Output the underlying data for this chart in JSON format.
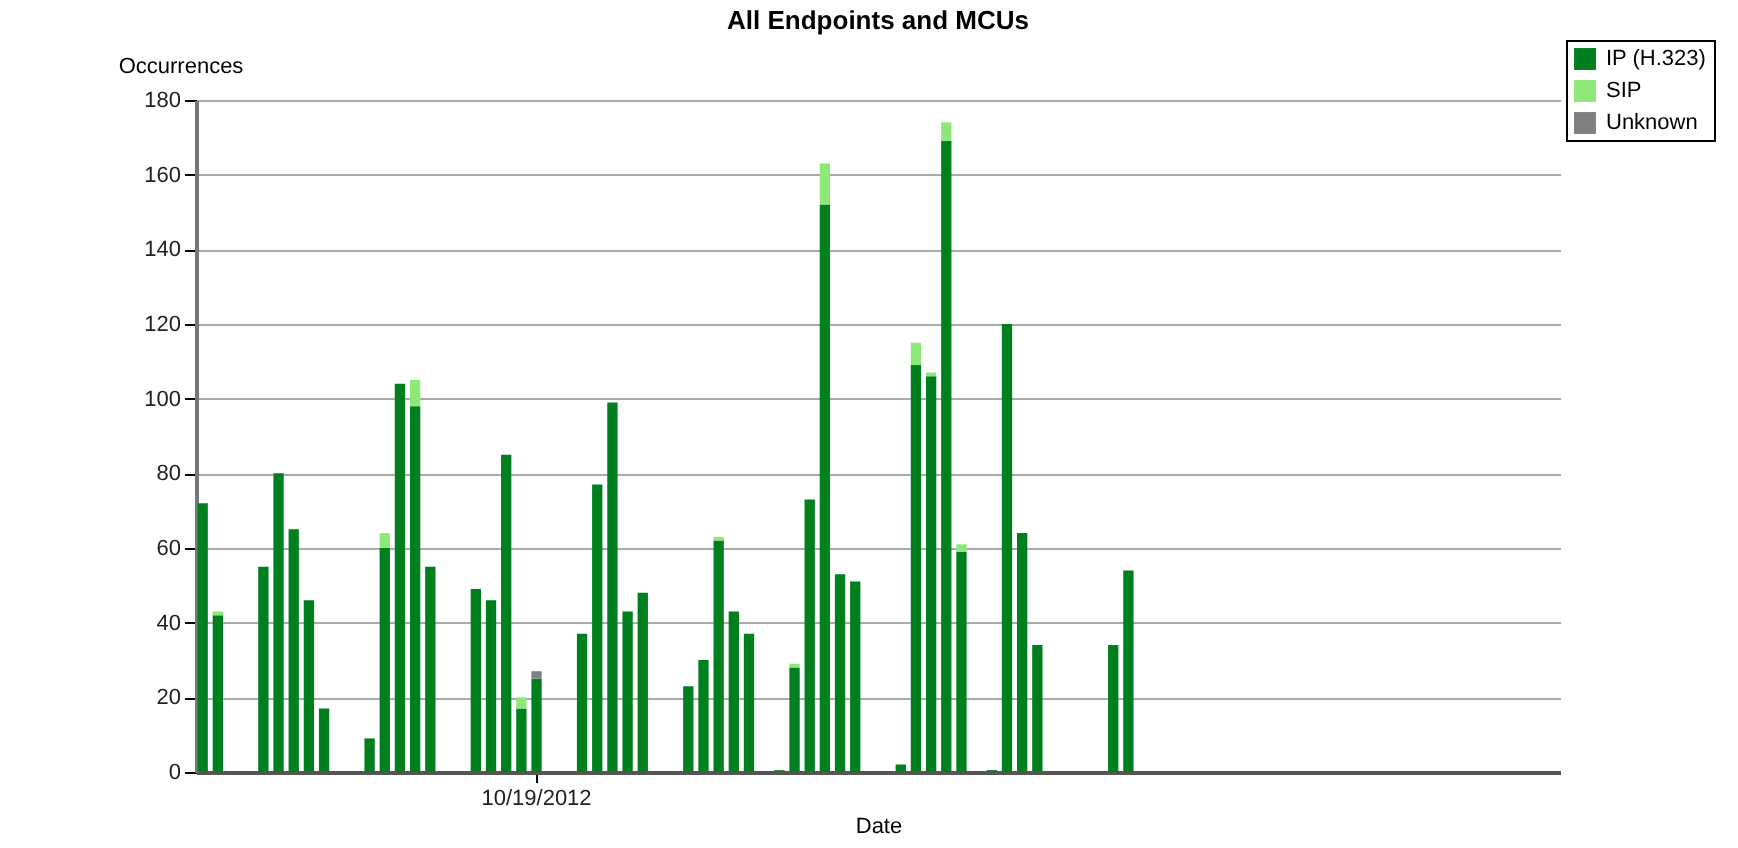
{
  "chart_data": {
    "type": "bar",
    "title": "All Endpoints and MCUs",
    "xlabel": "Date",
    "ylabel": "Occurrences",
    "categories": [
      null,
      null,
      null,
      null,
      null,
      null,
      null,
      null,
      null,
      null,
      null,
      null,
      null,
      null,
      null,
      null,
      null,
      null,
      null,
      null,
      null,
      null,
      "10/19/2012",
      null,
      null,
      null,
      null,
      null,
      null,
      null,
      null,
      null,
      null,
      null,
      null,
      null,
      null,
      null,
      null,
      null,
      null,
      null,
      null,
      null,
      null,
      null,
      null,
      null,
      null,
      null,
      null,
      null,
      null,
      null,
      null,
      null,
      null,
      null,
      null,
      null,
      null,
      null,
      null,
      null,
      null,
      null,
      null,
      null,
      null,
      null,
      null,
      null,
      null,
      null,
      null,
      null,
      null,
      null,
      null,
      null,
      null,
      null,
      null,
      null,
      null,
      null,
      null,
      null,
      null,
      null
    ],
    "series": [
      {
        "name": "IP (H.323)",
        "color": "#007f1f",
        "values": [
          72,
          42,
          null,
          null,
          55,
          80,
          65,
          46,
          17,
          null,
          null,
          9,
          60,
          104,
          98,
          55,
          null,
          null,
          49,
          46,
          85,
          17,
          25,
          null,
          null,
          37,
          77,
          99,
          43,
          48,
          null,
          null,
          23,
          30,
          62,
          43,
          37,
          null,
          0.5,
          28,
          73,
          152,
          53,
          51,
          null,
          null,
          2,
          109,
          106,
          169,
          59,
          null,
          0.5,
          120,
          64,
          34,
          null,
          null,
          null,
          null,
          34,
          54,
          null,
          null,
          null,
          null,
          null,
          null,
          null,
          null,
          null,
          null,
          null,
          null,
          null,
          null,
          null,
          null,
          null,
          null,
          null,
          null,
          null,
          null,
          null,
          null,
          null,
          null,
          null,
          null
        ]
      },
      {
        "name": "SIP",
        "color": "#8de878",
        "values": [
          null,
          1,
          null,
          null,
          null,
          null,
          null,
          null,
          null,
          null,
          null,
          null,
          4,
          null,
          7,
          null,
          null,
          null,
          null,
          null,
          null,
          3,
          null,
          null,
          null,
          null,
          null,
          null,
          null,
          null,
          null,
          null,
          null,
          null,
          1,
          null,
          null,
          null,
          null,
          1,
          null,
          11,
          null,
          null,
          null,
          null,
          null,
          6,
          1,
          5,
          2,
          null,
          null,
          null,
          null,
          null,
          null,
          null,
          null,
          null,
          null,
          null,
          null,
          null,
          null,
          null,
          null,
          null,
          null,
          null,
          null,
          null,
          null,
          null,
          null,
          null,
          null,
          null,
          null,
          null,
          null,
          null,
          null,
          null,
          null,
          null,
          null,
          null,
          null,
          null
        ]
      },
      {
        "name": "Unknown",
        "color": "#808080",
        "values": [
          null,
          null,
          null,
          null,
          null,
          null,
          null,
          null,
          null,
          null,
          null,
          null,
          null,
          null,
          null,
          null,
          null,
          null,
          null,
          null,
          null,
          null,
          2,
          null,
          null,
          null,
          null,
          null,
          null,
          null,
          null,
          null,
          null,
          null,
          null,
          null,
          null,
          null,
          null,
          null,
          null,
          null,
          null,
          null,
          null,
          null,
          null,
          null,
          null,
          null,
          null,
          null,
          null,
          null,
          null,
          null,
          null,
          null,
          null,
          null,
          null,
          null,
          null,
          null,
          null,
          null,
          null,
          null,
          null,
          null,
          null,
          null,
          null,
          null,
          null,
          null,
          null,
          null,
          null,
          null,
          null,
          null,
          null,
          null,
          null,
          null,
          null,
          null,
          null,
          null
        ]
      }
    ],
    "stacked": true,
    "ylim": [
      0,
      180
    ],
    "yticks": [
      0,
      20,
      40,
      60,
      80,
      100,
      120,
      140,
      160,
      180
    ],
    "grid": "y",
    "legend": "top right"
  }
}
